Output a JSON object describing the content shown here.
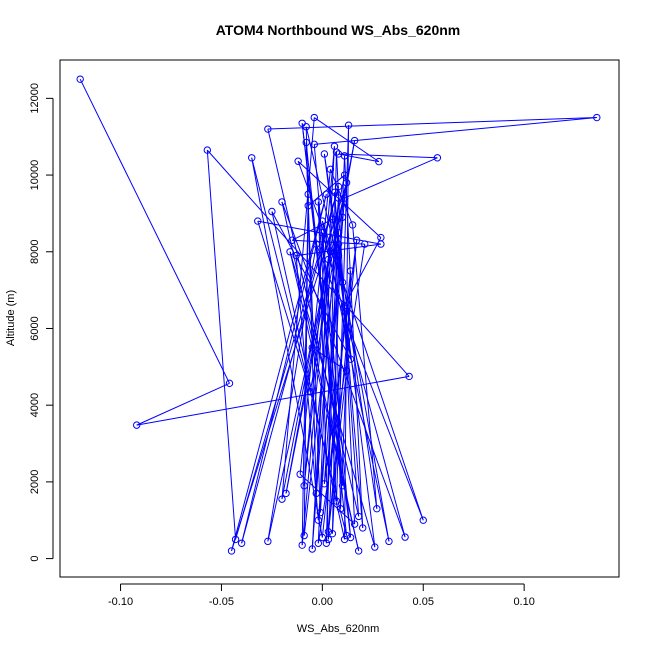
{
  "chart_data": {
    "type": "line",
    "title": "ATOM4 Northbound WS_Abs_620nm",
    "xlabel": "WS_Abs_620nm",
    "ylabel": "Altitude (m)",
    "xlim": [
      -0.13,
      0.147
    ],
    "ylim": [
      -480,
      13000
    ],
    "x_ticks": [
      -0.1,
      -0.05,
      0.0,
      0.05,
      0.1
    ],
    "x_tick_labels": [
      "-0.10",
      "-0.05",
      "0.00",
      "0.05",
      "0.10"
    ],
    "y_ticks": [
      0,
      2000,
      4000,
      6000,
      8000,
      10000,
      12000
    ],
    "y_tick_labels": [
      "0",
      "2000",
      "4000",
      "6000",
      "8000",
      "10000",
      "12000"
    ],
    "grid": false,
    "legend": "none",
    "markers": "open-circle",
    "series": [
      {
        "color": "#0000ff",
        "points": [
          [
            -0.12,
            12500
          ],
          [
            -0.046,
            4570
          ],
          [
            -0.092,
            3480
          ],
          [
            0.043,
            4750
          ],
          [
            -0.057,
            10650
          ],
          [
            -0.043,
            500
          ],
          [
            0.008,
            9700
          ],
          [
            -0.04,
            400
          ],
          [
            0.002,
            9500
          ],
          [
            -0.045,
            200
          ],
          [
            0.012,
            9800
          ],
          [
            -0.027,
            450
          ],
          [
            -0.003,
            8200
          ],
          [
            0.05,
            1000
          ],
          [
            0.0,
            8800
          ],
          [
            0.033,
            450
          ],
          [
            0.008,
            7900
          ],
          [
            0.026,
            300
          ],
          [
            -0.016,
            8000
          ],
          [
            0.018,
            200
          ],
          [
            -0.02,
            9300
          ],
          [
            0.041,
            560
          ],
          [
            0.0,
            8500
          ],
          [
            0.014,
            550
          ],
          [
            -0.01,
            11350
          ],
          [
            0.01,
            1900
          ],
          [
            -0.004,
            10800
          ],
          [
            0.136,
            11500
          ],
          [
            -0.027,
            11200
          ],
          [
            0.018,
            1100
          ],
          [
            0.008,
            8500
          ],
          [
            -0.009,
            600
          ],
          [
            -0.007,
            9500
          ],
          [
            -0.01,
            350
          ],
          [
            0.003,
            7800
          ],
          [
            -0.005,
            250
          ],
          [
            0.008,
            9400
          ],
          [
            0.002,
            400
          ],
          [
            0.007,
            10600
          ],
          [
            0.016,
            900
          ],
          [
            -0.011,
            2200
          ],
          [
            0.004,
            10150
          ],
          [
            0.015,
            8700
          ],
          [
            0.027,
            1300
          ],
          [
            0.001,
            10550
          ],
          [
            0.014,
            5200
          ],
          [
            -0.025,
            9050
          ],
          [
            0.011,
            500
          ],
          [
            0.013,
            11300
          ],
          [
            0.007,
            1500
          ],
          [
            -0.002,
            9300
          ],
          [
            0.003,
            500
          ],
          [
            0.011,
            10500
          ],
          [
            0.02,
            800
          ],
          [
            0.006,
            9550
          ],
          [
            0.009,
            1300
          ],
          [
            0.014,
            7500
          ],
          [
            0.0,
            550
          ],
          [
            -0.035,
            10450
          ],
          [
            0.012,
            600
          ],
          [
            -0.008,
            10850
          ],
          [
            -0.003,
            1700
          ],
          [
            0.006,
            10750
          ],
          [
            -0.009,
            1900
          ],
          [
            0.005,
            8850
          ],
          [
            -0.015,
            8300
          ],
          [
            0.021,
            8200
          ],
          [
            -0.002,
            400
          ],
          [
            0.004,
            8000
          ],
          [
            -0.018,
            1700
          ],
          [
            0.016,
            10900
          ],
          [
            -0.006,
            4350
          ],
          [
            -0.032,
            8800
          ],
          [
            0.029,
            8200
          ],
          [
            -0.013,
            7900
          ],
          [
            -0.002,
            1000
          ],
          [
            0.011,
            9400
          ],
          [
            0.057,
            10450
          ],
          [
            0.008,
            10550
          ],
          [
            0.028,
            10350
          ],
          [
            -0.004,
            11500
          ],
          [
            -0.02,
            1550
          ],
          [
            0.011,
            10000
          ],
          [
            -0.007,
            9200
          ],
          [
            -0.001,
            1200
          ],
          [
            0.008,
            8200
          ],
          [
            0.005,
            650
          ],
          [
            0.011,
            6600
          ],
          [
            0.029,
            8370
          ],
          [
            -0.012,
            10360
          ],
          [
            0.01,
            7200
          ],
          [
            -0.008,
            11260
          ],
          [
            -0.005,
            5500
          ],
          [
            0.012,
            4900
          ],
          [
            0.003,
            700
          ],
          [
            0.017,
            8300
          ],
          [
            0.001,
            1950
          ],
          [
            0.01,
            8900
          ]
        ]
      }
    ]
  }
}
